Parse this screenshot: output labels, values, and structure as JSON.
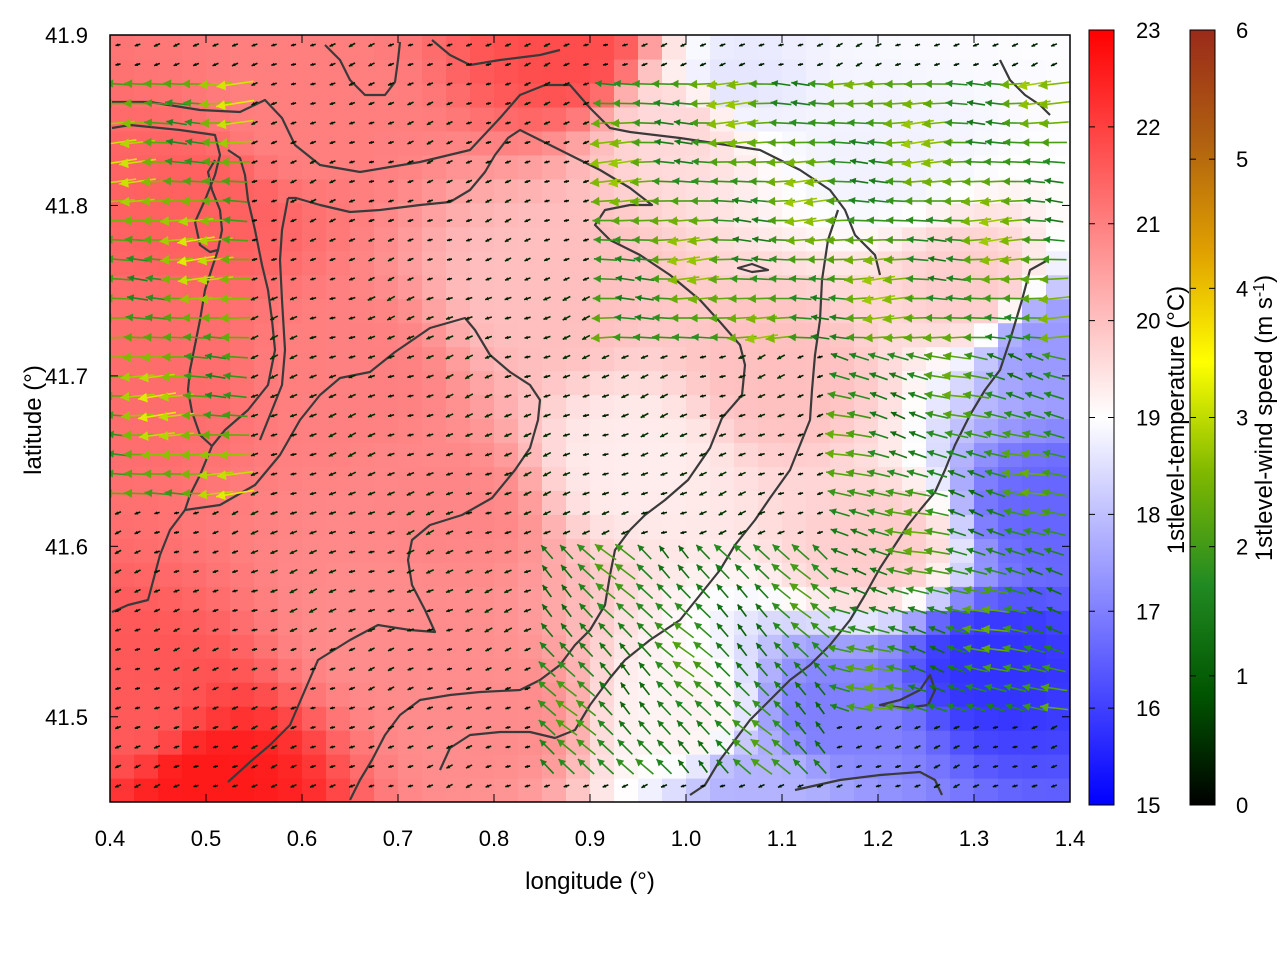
{
  "chart_data": {
    "type": "heatmap",
    "title": "",
    "xlabel": "longitude (°)",
    "ylabel": "latitude (°)",
    "xlim": [
      0.4,
      1.4
    ],
    "ylim": [
      41.45,
      41.9
    ],
    "xticks": [
      0.4,
      0.5,
      0.6,
      0.7,
      0.8,
      0.9,
      1.0,
      1.1,
      1.2,
      1.3,
      1.4
    ],
    "xtick_labels": [
      "0.4",
      "0.5",
      "0.6",
      "0.7",
      "0.8",
      "0.9",
      "1.0",
      "1.1",
      "1.2",
      "1.3",
      "1.4"
    ],
    "yticks": [
      41.5,
      41.6,
      41.7,
      41.8,
      41.9
    ],
    "ytick_labels": [
      "41.5",
      "41.6",
      "41.7",
      "41.8",
      "41.9"
    ],
    "grid": false,
    "temperature_colorbar": {
      "label": "1stlevel-temperature (°C)",
      "range": [
        15,
        23
      ],
      "ticks": [
        15,
        16,
        17,
        18,
        19,
        20,
        21,
        22,
        23
      ],
      "tick_labels": [
        "15",
        "16",
        "17",
        "18",
        "19",
        "20",
        "21",
        "22",
        "23"
      ],
      "colormap": [
        "#0000ff",
        "#ffffff",
        "#ff0000"
      ]
    },
    "wind_colorbar": {
      "label_main": "1stlevel-wind speed (m s",
      "label_sup": "-1",
      "label_end": ")",
      "range": [
        0,
        6
      ],
      "ticks": [
        0,
        1,
        2,
        3,
        4,
        5,
        6
      ],
      "tick_labels": [
        "0",
        "1",
        "2",
        "3",
        "4",
        "5",
        "6"
      ],
      "colormap": [
        "#000000",
        "#005500",
        "#228b22",
        "#7fb800",
        "#ffff00",
        "#e0a000",
        "#b06010",
        "#9a2a1a"
      ]
    },
    "temperature_anchors": [
      {
        "lon": 0.42,
        "lat": 41.5,
        "t": 21.6
      },
      {
        "lon": 0.5,
        "lat": 41.46,
        "t": 22.6
      },
      {
        "lon": 0.45,
        "lat": 41.7,
        "t": 21.3
      },
      {
        "lon": 0.5,
        "lat": 41.8,
        "t": 21.5
      },
      {
        "lon": 0.6,
        "lat": 41.85,
        "t": 21.0
      },
      {
        "lon": 0.88,
        "lat": 41.89,
        "t": 21.8
      },
      {
        "lon": 0.7,
        "lat": 41.55,
        "t": 20.8
      },
      {
        "lon": 0.65,
        "lat": 41.7,
        "t": 21.0
      },
      {
        "lon": 0.85,
        "lat": 41.75,
        "t": 20.0
      },
      {
        "lon": 0.95,
        "lat": 41.65,
        "t": 19.3
      },
      {
        "lon": 1.0,
        "lat": 41.85,
        "t": 19.6
      },
      {
        "lon": 1.05,
        "lat": 41.87,
        "t": 18.6
      },
      {
        "lon": 1.2,
        "lat": 41.83,
        "t": 18.8
      },
      {
        "lon": 1.1,
        "lat": 41.7,
        "t": 20.0
      },
      {
        "lon": 1.2,
        "lat": 41.6,
        "t": 19.8
      },
      {
        "lon": 1.0,
        "lat": 41.5,
        "t": 19.2
      },
      {
        "lon": 1.15,
        "lat": 41.5,
        "t": 17.0
      },
      {
        "lon": 1.32,
        "lat": 41.53,
        "t": 15.8
      },
      {
        "lon": 1.38,
        "lat": 41.62,
        "t": 16.6
      },
      {
        "lon": 1.38,
        "lat": 41.72,
        "t": 17.4
      },
      {
        "lon": 1.3,
        "lat": 41.75,
        "t": 19.8
      },
      {
        "lon": 0.8,
        "lat": 41.5,
        "t": 20.8
      },
      {
        "lon": 1.08,
        "lat": 41.46,
        "t": 17.8
      },
      {
        "lon": 0.75,
        "lat": 41.62,
        "t": 20.9
      }
    ],
    "wind_field_series": [
      {
        "region": "northwest",
        "lon_range": [
          0.4,
          0.55
        ],
        "lat_range": [
          41.62,
          41.88
        ],
        "direction": "west",
        "speed_ms": 3.0
      },
      {
        "region": "northeast",
        "lon_range": [
          0.9,
          1.4
        ],
        "lat_range": [
          41.72,
          41.88
        ],
        "direction": "west",
        "speed_ms": 2.6
      },
      {
        "region": "east",
        "lon_range": [
          1.15,
          1.4
        ],
        "lat_range": [
          41.5,
          41.72
        ],
        "direction": "west-northwest",
        "speed_ms": 2.2
      },
      {
        "region": "south-central",
        "lon_range": [
          0.85,
          1.15
        ],
        "lat_range": [
          41.47,
          41.6
        ],
        "direction": "northwest",
        "speed_ms": 2.0
      },
      {
        "region": "interior",
        "lon_range": [
          0.55,
          1.1
        ],
        "lat_range": [
          41.55,
          41.75
        ],
        "direction": "variable",
        "speed_ms": 0.5
      }
    ]
  }
}
